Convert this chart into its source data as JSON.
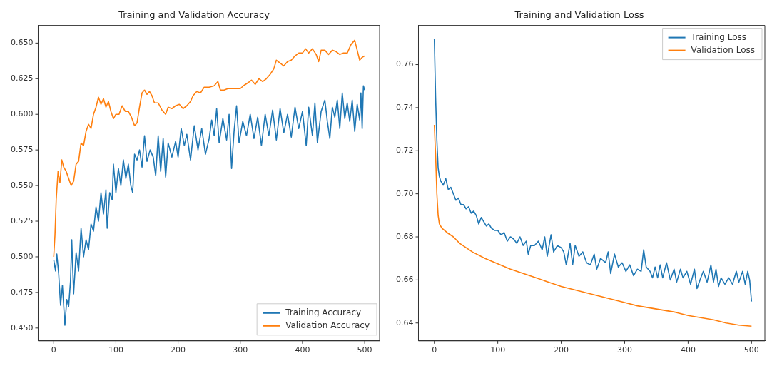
{
  "chart_data": [
    {
      "type": "line",
      "title": "Training and Validation Accuracy",
      "legend": "bottom right",
      "grid": false,
      "xlim": [
        -25,
        524
      ],
      "xticks": [
        0,
        100,
        200,
        300,
        400,
        500
      ],
      "ylim": [
        0.441,
        0.6624
      ],
      "yticks": [
        {
          "value": 0.45,
          "label": "0.450"
        },
        {
          "value": 0.475,
          "label": "0.475"
        },
        {
          "value": 0.5,
          "label": "0.500"
        },
        {
          "value": 0.525,
          "label": "0.525"
        },
        {
          "value": 0.55,
          "label": "0.550"
        },
        {
          "value": 0.575,
          "label": "0.575"
        },
        {
          "value": 0.6,
          "label": "0.600"
        },
        {
          "value": 0.625,
          "label": "0.625"
        },
        {
          "value": 0.65,
          "label": "0.650"
        }
      ],
      "series": [
        {
          "name": "Training Accuracy",
          "color": "#1f77b4",
          "x": [
            0,
            3,
            5,
            8,
            11,
            14,
            18,
            21,
            24,
            27,
            29,
            32,
            36,
            40,
            44,
            48,
            52,
            56,
            60,
            64,
            68,
            72,
            76,
            80,
            84,
            86,
            90,
            94,
            96,
            100,
            104,
            108,
            112,
            116,
            120,
            124,
            127,
            130,
            134,
            138,
            142,
            146,
            150,
            155,
            160,
            164,
            168,
            172,
            176,
            180,
            184,
            190,
            196,
            200,
            205,
            210,
            214,
            220,
            226,
            232,
            238,
            244,
            250,
            254,
            258,
            262,
            266,
            272,
            278,
            282,
            286,
            290,
            294,
            298,
            304,
            310,
            316,
            322,
            328,
            334,
            340,
            346,
            352,
            358,
            364,
            370,
            376,
            382,
            388,
            394,
            400,
            406,
            410,
            416,
            420,
            424,
            430,
            436,
            440,
            444,
            448,
            452,
            456,
            460,
            464,
            468,
            472,
            476,
            480,
            484,
            488,
            492,
            494,
            496,
            498,
            500
          ],
          "values": [
            0.498,
            0.49,
            0.502,
            0.488,
            0.466,
            0.48,
            0.452,
            0.47,
            0.465,
            0.483,
            0.512,
            0.474,
            0.503,
            0.49,
            0.52,
            0.5,
            0.512,
            0.505,
            0.523,
            0.518,
            0.535,
            0.525,
            0.545,
            0.53,
            0.547,
            0.52,
            0.545,
            0.54,
            0.565,
            0.545,
            0.562,
            0.55,
            0.568,
            0.555,
            0.565,
            0.55,
            0.545,
            0.572,
            0.568,
            0.575,
            0.563,
            0.585,
            0.567,
            0.575,
            0.57,
            0.557,
            0.585,
            0.56,
            0.583,
            0.556,
            0.58,
            0.57,
            0.581,
            0.57,
            0.59,
            0.578,
            0.586,
            0.568,
            0.592,
            0.575,
            0.59,
            0.572,
            0.583,
            0.596,
            0.585,
            0.604,
            0.58,
            0.597,
            0.582,
            0.6,
            0.562,
            0.588,
            0.606,
            0.58,
            0.595,
            0.585,
            0.6,
            0.583,
            0.598,
            0.578,
            0.6,
            0.585,
            0.603,
            0.582,
            0.604,
            0.587,
            0.6,
            0.584,
            0.605,
            0.59,
            0.602,
            0.578,
            0.605,
            0.585,
            0.608,
            0.58,
            0.602,
            0.61,
            0.595,
            0.583,
            0.605,
            0.598,
            0.61,
            0.59,
            0.615,
            0.597,
            0.608,
            0.595,
            0.61,
            0.588,
            0.607,
            0.596,
            0.615,
            0.59,
            0.62,
            0.617
          ]
        },
        {
          "name": "Validation Accuracy",
          "color": "#ff7f0e",
          "x": [
            0,
            2,
            4,
            7,
            10,
            13,
            16,
            20,
            24,
            28,
            32,
            36,
            40,
            44,
            48,
            52,
            56,
            60,
            64,
            68,
            72,
            76,
            80,
            84,
            88,
            92,
            96,
            100,
            105,
            110,
            115,
            120,
            125,
            130,
            134,
            138,
            142,
            146,
            150,
            154,
            158,
            162,
            168,
            174,
            180,
            184,
            190,
            196,
            202,
            208,
            214,
            220,
            224,
            230,
            236,
            242,
            250,
            258,
            264,
            268,
            274,
            280,
            290,
            300,
            305,
            312,
            318,
            324,
            330,
            336,
            342,
            348,
            354,
            358,
            364,
            370,
            376,
            382,
            388,
            394,
            400,
            405,
            410,
            416,
            422,
            426,
            430,
            436,
            442,
            448,
            454,
            460,
            466,
            472,
            478,
            484,
            488,
            492,
            496,
            500
          ],
          "values": [
            0.5,
            0.515,
            0.54,
            0.56,
            0.552,
            0.568,
            0.563,
            0.56,
            0.555,
            0.55,
            0.553,
            0.565,
            0.567,
            0.58,
            0.578,
            0.588,
            0.593,
            0.59,
            0.6,
            0.605,
            0.612,
            0.607,
            0.611,
            0.605,
            0.609,
            0.602,
            0.597,
            0.6,
            0.6,
            0.606,
            0.602,
            0.602,
            0.598,
            0.592,
            0.594,
            0.605,
            0.615,
            0.617,
            0.614,
            0.616,
            0.613,
            0.608,
            0.608,
            0.603,
            0.6,
            0.605,
            0.604,
            0.606,
            0.607,
            0.604,
            0.606,
            0.609,
            0.613,
            0.616,
            0.615,
            0.619,
            0.619,
            0.62,
            0.623,
            0.617,
            0.617,
            0.618,
            0.618,
            0.618,
            0.62,
            0.622,
            0.624,
            0.621,
            0.625,
            0.623,
            0.625,
            0.628,
            0.632,
            0.638,
            0.636,
            0.634,
            0.637,
            0.638,
            0.641,
            0.643,
            0.643,
            0.646,
            0.643,
            0.646,
            0.642,
            0.637,
            0.645,
            0.645,
            0.642,
            0.645,
            0.644,
            0.642,
            0.643,
            0.643,
            0.649,
            0.652,
            0.645,
            0.638,
            0.64,
            0.641
          ]
        }
      ]
    },
    {
      "type": "line",
      "title": "Training and Validation Loss",
      "legend": "top right",
      "grid": false,
      "xlim": [
        -25,
        521
      ],
      "xticks": [
        0,
        100,
        200,
        300,
        400,
        500
      ],
      "ylim": [
        0.6317,
        0.7782
      ],
      "yticks": [
        0.64,
        0.66,
        0.68,
        {
          "value": 0.7,
          "label": "0.70"
        },
        0.72,
        0.74,
        0.76
      ],
      "series": [
        {
          "name": "Training Loss",
          "color": "#1f77b4",
          "x": [
            0,
            2,
            4,
            6,
            8,
            10,
            14,
            18,
            22,
            26,
            30,
            34,
            38,
            42,
            46,
            50,
            54,
            58,
            62,
            66,
            70,
            74,
            78,
            82,
            86,
            90,
            95,
            100,
            105,
            110,
            115,
            120,
            125,
            130,
            135,
            140,
            145,
            148,
            152,
            158,
            164,
            170,
            174,
            178,
            184,
            188,
            194,
            200,
            204,
            208,
            214,
            218,
            222,
            228,
            234,
            240,
            246,
            252,
            256,
            262,
            266,
            270,
            274,
            278,
            284,
            290,
            296,
            302,
            308,
            314,
            320,
            326,
            330,
            334,
            340,
            344,
            348,
            352,
            356,
            360,
            366,
            372,
            378,
            382,
            388,
            392,
            398,
            404,
            410,
            414,
            420,
            424,
            430,
            436,
            440,
            444,
            448,
            452,
            458,
            464,
            470,
            476,
            480,
            486,
            490,
            494,
            497,
            500
          ],
          "values": [
            0.772,
            0.745,
            0.725,
            0.712,
            0.708,
            0.706,
            0.704,
            0.707,
            0.702,
            0.703,
            0.7,
            0.697,
            0.698,
            0.695,
            0.695,
            0.693,
            0.694,
            0.691,
            0.692,
            0.69,
            0.686,
            0.689,
            0.687,
            0.685,
            0.686,
            0.684,
            0.683,
            0.683,
            0.681,
            0.682,
            0.678,
            0.68,
            0.679,
            0.677,
            0.68,
            0.676,
            0.678,
            0.672,
            0.676,
            0.676,
            0.678,
            0.674,
            0.68,
            0.671,
            0.681,
            0.673,
            0.676,
            0.675,
            0.673,
            0.667,
            0.677,
            0.667,
            0.676,
            0.671,
            0.673,
            0.668,
            0.667,
            0.672,
            0.665,
            0.67,
            0.669,
            0.668,
            0.673,
            0.663,
            0.672,
            0.666,
            0.668,
            0.664,
            0.667,
            0.662,
            0.665,
            0.664,
            0.674,
            0.666,
            0.664,
            0.661,
            0.666,
            0.661,
            0.667,
            0.661,
            0.668,
            0.66,
            0.665,
            0.659,
            0.665,
            0.661,
            0.664,
            0.658,
            0.665,
            0.656,
            0.661,
            0.664,
            0.659,
            0.667,
            0.659,
            0.665,
            0.657,
            0.661,
            0.658,
            0.661,
            0.658,
            0.664,
            0.659,
            0.664,
            0.658,
            0.664,
            0.66,
            0.65
          ]
        },
        {
          "name": "Validation Loss",
          "color": "#ff7f0e",
          "x": [
            0,
            2,
            4,
            6,
            8,
            12,
            20,
            30,
            40,
            50,
            60,
            80,
            100,
            120,
            140,
            160,
            180,
            200,
            220,
            240,
            260,
            280,
            300,
            320,
            340,
            360,
            380,
            400,
            420,
            440,
            460,
            480,
            500
          ],
          "values": [
            0.732,
            0.718,
            0.7,
            0.69,
            0.686,
            0.684,
            0.682,
            0.68,
            0.677,
            0.675,
            0.673,
            0.67,
            0.6675,
            0.665,
            0.663,
            0.661,
            0.659,
            0.657,
            0.6555,
            0.654,
            0.6525,
            0.651,
            0.6495,
            0.648,
            0.647,
            0.646,
            0.645,
            0.6435,
            0.6425,
            0.6415,
            0.64,
            0.639,
            0.6385
          ]
        }
      ]
    }
  ]
}
